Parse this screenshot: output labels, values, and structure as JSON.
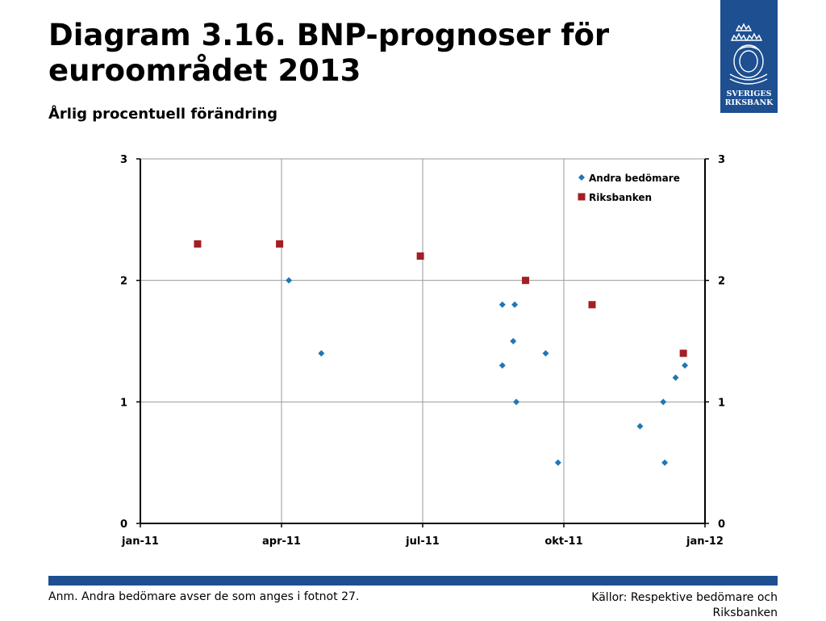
{
  "header": {
    "title": "Diagram 3.16. BNP-prognoser för euroområdet 2013",
    "subtitle": "Årlig procentuell förändring"
  },
  "logo": {
    "line1": "SVERIGES",
    "line2": "RIKSBANK",
    "icon": "crowns-emblem-icon",
    "color": "#1d4f91"
  },
  "footer": {
    "note": "Anm. Andra bedömare avser de som anges i fotnot 27.",
    "source": "Källor: Respektive bedömare och Riksbanken"
  },
  "chart_data": {
    "type": "scatter",
    "title": "",
    "xlabel": "",
    "ylabel": "",
    "x_ticks": [
      "jan-11",
      "apr-11",
      "jul-11",
      "okt-11",
      "jan-12"
    ],
    "x_range": [
      "2011-01-01",
      "2012-01-01"
    ],
    "ylim": [
      0,
      3
    ],
    "y_ticks": [
      "0",
      "1",
      "2",
      "3"
    ],
    "y_ticks_right": [
      "0",
      "1",
      "2",
      "3"
    ],
    "grid": true,
    "legend_position": "top-right",
    "series": [
      {
        "name": "Andra bedömare",
        "marker": "diamond",
        "color": "#1f77b4",
        "points": [
          {
            "x": "2011-04-07",
            "y": 2.0
          },
          {
            "x": "2011-04-28",
            "y": 1.4
          },
          {
            "x": "2011-08-23",
            "y": 1.8
          },
          {
            "x": "2011-08-23",
            "y": 1.3
          },
          {
            "x": "2011-08-30",
            "y": 1.5
          },
          {
            "x": "2011-08-31",
            "y": 1.8
          },
          {
            "x": "2011-09-01",
            "y": 1.0
          },
          {
            "x": "2011-09-20",
            "y": 1.4
          },
          {
            "x": "2011-09-28",
            "y": 0.5
          },
          {
            "x": "2011-11-20",
            "y": 0.8
          },
          {
            "x": "2011-12-05",
            "y": 1.0
          },
          {
            "x": "2011-12-06",
            "y": 0.5
          },
          {
            "x": "2011-12-13",
            "y": 1.2
          },
          {
            "x": "2011-12-19",
            "y": 1.3
          }
        ]
      },
      {
        "name": "Riksbanken",
        "marker": "square",
        "color": "#a31f24",
        "points": [
          {
            "x": "2011-02-07",
            "y": 2.3
          },
          {
            "x": "2011-04-01",
            "y": 2.3
          },
          {
            "x": "2011-07-01",
            "y": 2.2
          },
          {
            "x": "2011-09-07",
            "y": 2.0
          },
          {
            "x": "2011-10-20",
            "y": 1.8
          },
          {
            "x": "2011-12-18",
            "y": 1.4
          }
        ]
      }
    ]
  }
}
